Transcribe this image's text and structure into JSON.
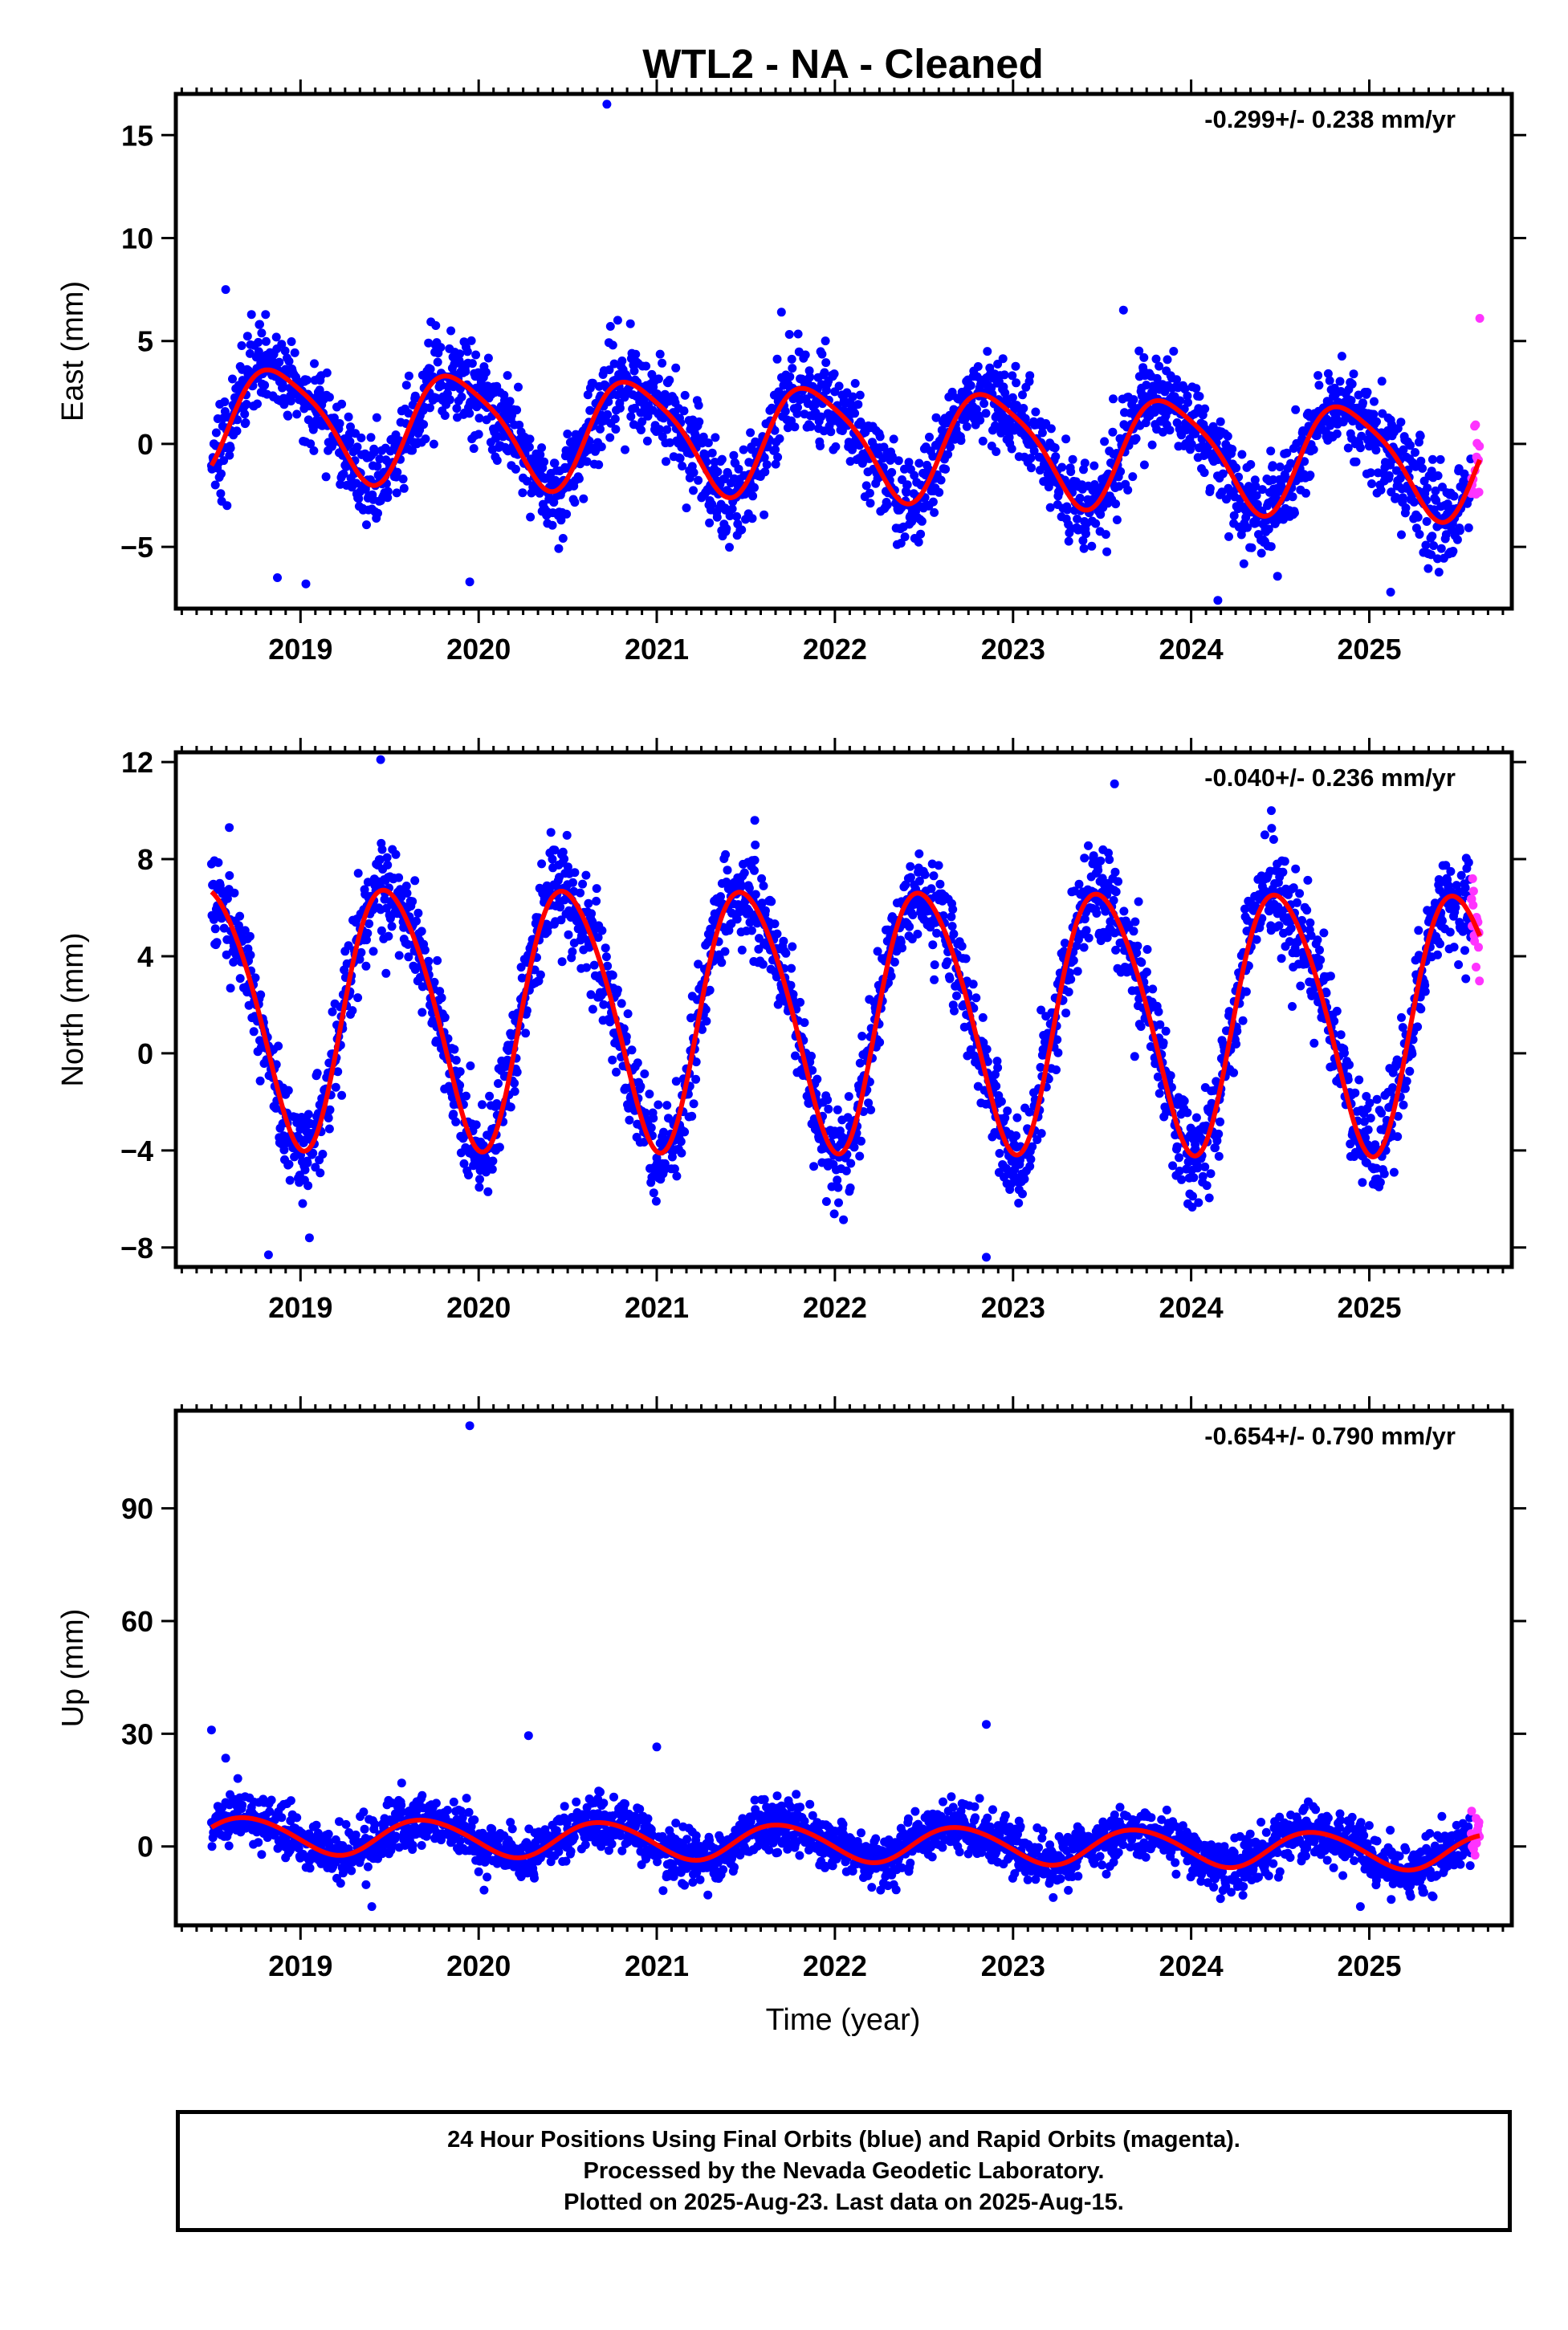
{
  "title": "WTL2  - NA - Cleaned",
  "colors": {
    "final": "#0000ff",
    "rapid": "#ff33ff",
    "model": "#ff0000",
    "frame": "#000000"
  },
  "xlabel": "Time (year)",
  "footer": {
    "line1": "24 Hour Positions Using Final Orbits (blue) and Rapid Orbits (magenta).",
    "line2": "Processed by the Nevada Geodetic Laboratory.",
    "line3": "Plotted on 2025-Aug-23. Last data on 2025-Aug-15."
  },
  "chart_data": [
    {
      "type": "scatter",
      "component": "east",
      "ylabel": "East (mm)",
      "rate_label": "-0.299+/- 0.238 mm/yr",
      "xlim": [
        2018.3,
        2025.8
      ],
      "ylim": [
        -8.0,
        17.0
      ],
      "x_ticks": [
        2019,
        2020,
        2021,
        2022,
        2023,
        2024,
        2025
      ],
      "y_ticks": [
        -5,
        0,
        5,
        10,
        15
      ],
      "data_start": 2018.5,
      "data_end": 2025.62,
      "rapid_start": 2025.57,
      "model": {
        "amp1": 2.6,
        "amp2": 0.5,
        "phase_year": 2018.63,
        "offset": 0.2,
        "rate": -0.299,
        "ref_year": 2022.0
      },
      "noise_sd": 1.1,
      "outliers": [
        [
          2020.72,
          16.5
        ],
        [
          2018.87,
          -6.5
        ],
        [
          2019.03,
          -6.8
        ],
        [
          2019.95,
          -6.7
        ],
        [
          2024.15,
          -7.6
        ],
        [
          2025.12,
          -7.2
        ],
        [
          2021.7,
          6.4
        ],
        [
          2023.62,
          6.5
        ],
        [
          2018.58,
          7.5
        ],
        [
          2025.62,
          6.1
        ]
      ]
    },
    {
      "type": "scatter",
      "component": "north",
      "ylabel": "North (mm)",
      "rate_label": "-0.040+/- 0.236 mm/yr",
      "xlim": [
        2018.3,
        2025.8
      ],
      "ylim": [
        -8.8,
        12.4
      ],
      "x_ticks": [
        2019,
        2020,
        2021,
        2022,
        2023,
        2024,
        2025
      ],
      "y_ticks": [
        -8,
        -4,
        0,
        4,
        8,
        12
      ],
      "data_start": 2018.5,
      "data_end": 2025.62,
      "rapid_start": 2025.57,
      "model": {
        "amp1": 5.3,
        "amp2": 0.6,
        "phase_year": 2018.25,
        "offset": 1.6,
        "rate": -0.04,
        "ref_year": 2022.0
      },
      "noise_sd": 1.0,
      "outliers": [
        [
          2019.45,
          12.1
        ],
        [
          2018.82,
          -8.3
        ],
        [
          2019.05,
          -7.6
        ],
        [
          2022.85,
          -8.4
        ],
        [
          2023.57,
          11.1
        ],
        [
          2024.45,
          10.0
        ],
        [
          2021.55,
          9.6
        ],
        [
          2018.6,
          9.3
        ]
      ]
    },
    {
      "type": "scatter",
      "component": "up",
      "ylabel": "Up (mm)",
      "rate_label": "-0.654+/- 0.790 mm/yr",
      "xlim": [
        2018.3,
        2025.8
      ],
      "ylim": [
        -21.0,
        116.0
      ],
      "x_ticks": [
        2019,
        2020,
        2021,
        2022,
        2023,
        2024,
        2025
      ],
      "y_ticks": [
        0,
        30,
        60,
        90
      ],
      "data_start": 2018.5,
      "data_end": 2025.62,
      "rapid_start": 2025.57,
      "model": {
        "amp1": 4.8,
        "amp2": 0.4,
        "phase_year": 2018.45,
        "offset": 0.9,
        "rate": -0.654,
        "ref_year": 2022.0
      },
      "noise_sd": 3.4,
      "outliers": [
        [
          2019.95,
          112.0
        ],
        [
          2018.5,
          31.0
        ],
        [
          2020.28,
          29.5
        ],
        [
          2021.0,
          26.5
        ],
        [
          2022.85,
          32.5
        ],
        [
          2018.58,
          23.5
        ],
        [
          2019.4,
          -16.0
        ],
        [
          2024.95,
          -16.0
        ]
      ]
    }
  ]
}
